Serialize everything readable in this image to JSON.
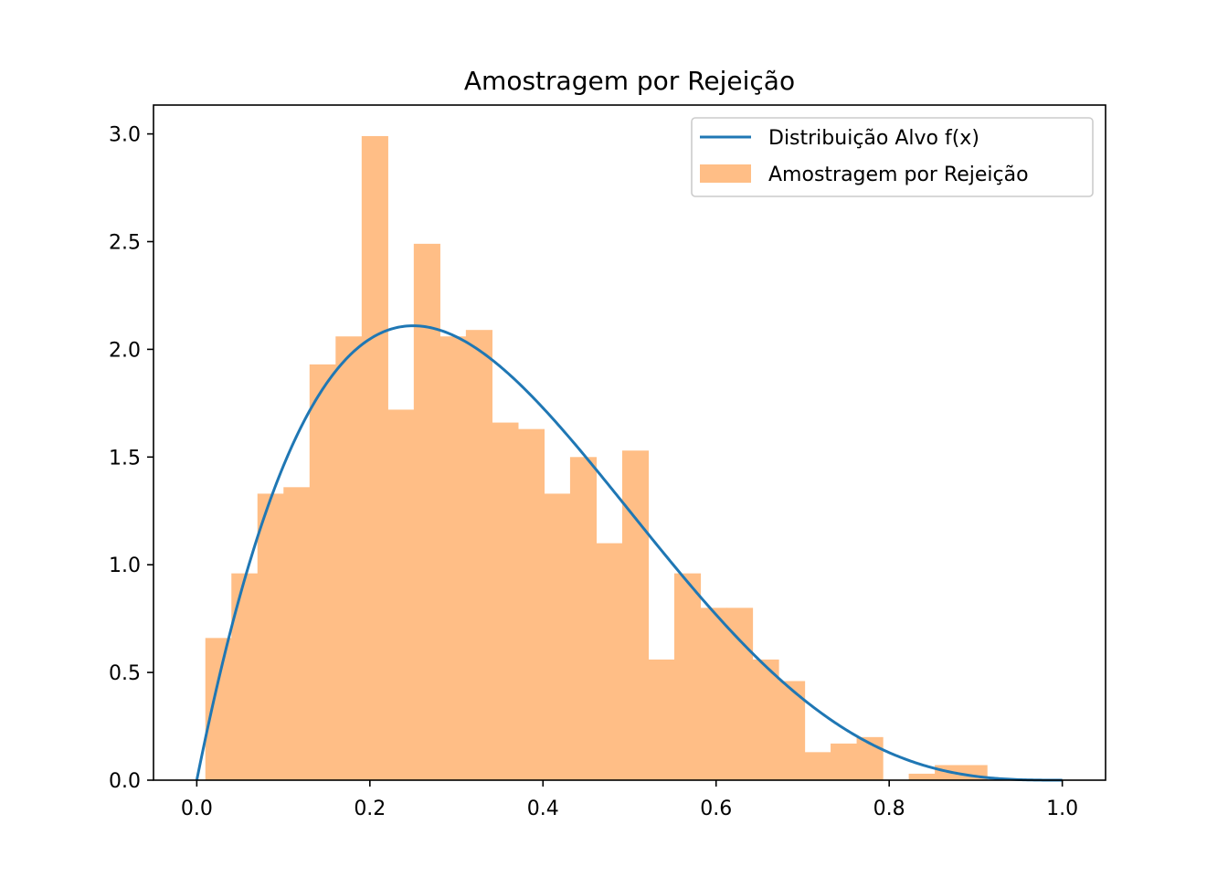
{
  "chart_data": {
    "type": "bar",
    "title": "Amostragem por Rejeição",
    "xlabel": "",
    "ylabel": "",
    "xlim": [
      -0.05,
      1.05
    ],
    "ylim": [
      0,
      3.134
    ],
    "xticks": [
      {
        "value": 0.0,
        "label": "0.0"
      },
      {
        "value": 0.2,
        "label": "0.2"
      },
      {
        "value": 0.4,
        "label": "0.4"
      },
      {
        "value": 0.6,
        "label": "0.6"
      },
      {
        "value": 0.8,
        "label": "0.8"
      },
      {
        "value": 1.0,
        "label": "1.0"
      }
    ],
    "yticks": [
      {
        "value": 0.0,
        "label": "0.0"
      },
      {
        "value": 0.5,
        "label": "0.5"
      },
      {
        "value": 1.0,
        "label": "1.0"
      },
      {
        "value": 1.5,
        "label": "1.5"
      },
      {
        "value": 2.0,
        "label": "2.0"
      },
      {
        "value": 2.5,
        "label": "2.5"
      },
      {
        "value": 3.0,
        "label": "3.0"
      }
    ],
    "grid": false,
    "legend_position": "top-right",
    "histogram": {
      "name": "Amostragem por Rejeição",
      "color": "#ffbe86",
      "bin_edges": [
        0.0099,
        0.04,
        0.0701,
        0.1002,
        0.1303,
        0.1604,
        0.1905,
        0.2206,
        0.2507,
        0.2808,
        0.3109,
        0.341,
        0.3711,
        0.4012,
        0.4313,
        0.4614,
        0.4915,
        0.5216,
        0.5517,
        0.5818,
        0.6119,
        0.642,
        0.6721,
        0.7022,
        0.7323,
        0.7624,
        0.7925,
        0.8226,
        0.8527,
        0.8828,
        0.9129
      ],
      "values": [
        0.66,
        0.96,
        1.33,
        1.36,
        1.93,
        2.06,
        2.99,
        1.72,
        2.49,
        2.06,
        2.09,
        1.66,
        1.63,
        1.33,
        1.5,
        1.1,
        1.53,
        0.56,
        0.96,
        0.8,
        0.8,
        0.56,
        0.46,
        0.13,
        0.17,
        0.2,
        0.0,
        0.03,
        0.07,
        0.07
      ]
    },
    "curve": {
      "name": "Distribuição Alvo f(x)",
      "color": "#1f77b4",
      "formula": "20 x (1 - x)^3",
      "x_range": [
        0,
        1
      ]
    }
  }
}
